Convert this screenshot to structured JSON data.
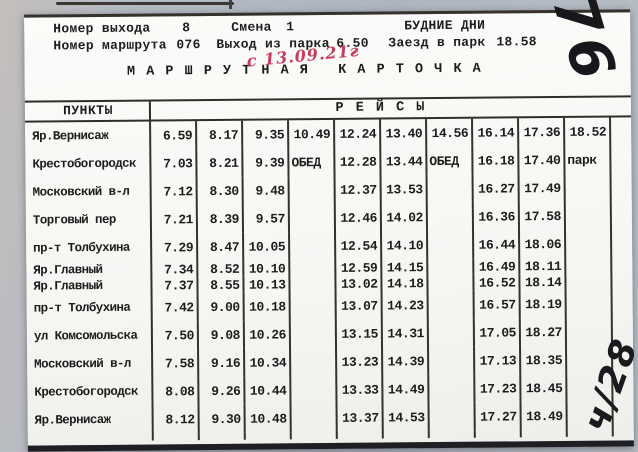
{
  "header": {
    "exit_label": "Номер выхода",
    "exit_value": "8",
    "shift_label": "Смена",
    "shift_value": "1",
    "days": "БУДНИЕ ДНИ",
    "route_label": "Номер маршрута",
    "route_value": "076",
    "depart_label": "Выход из парка",
    "depart_value": "6.50",
    "return_label": "Заезд в парк",
    "return_value": "18.58",
    "title": "М А Р Ш Р У Т Н А Я   К А Р Т О Ч К А"
  },
  "handwriting": {
    "date_note": "с 13.09.21г",
    "side_mark": "76",
    "corner_mark": "ч/28"
  },
  "table": {
    "points_header": "ПУНКТЫ",
    "trips_header": "Р Е Й С Ы",
    "rows": [
      {
        "point": "Яр.Вернисаж",
        "times": [
          "6.59",
          "8.17",
          "9.35",
          "10.49",
          "12.24",
          "13.40",
          "14.56",
          "16.14",
          "17.36",
          "18.52"
        ]
      },
      {
        "point": "Крестобогородск",
        "times": [
          "7.03",
          "8.21",
          "9.39",
          "ОБЕД",
          "12.28",
          "13.44",
          "ОБЕД",
          "16.18",
          "17.40",
          "парк"
        ]
      },
      {
        "point": "Московский в-л",
        "times": [
          "7.12",
          "8.30",
          "9.48",
          "",
          "12.37",
          "13.53",
          "",
          "16.27",
          "17.49",
          ""
        ]
      },
      {
        "point": "Торговый пер",
        "times": [
          "7.21",
          "8.39",
          "9.57",
          "",
          "12.46",
          "14.02",
          "",
          "16.36",
          "17.58",
          ""
        ]
      },
      {
        "point": "пр-т Толбухина",
        "times": [
          "7.29",
          "8.47",
          "10.05",
          "",
          "12.54",
          "14.10",
          "",
          "16.44",
          "18.06",
          ""
        ]
      },
      {
        "point": "Яр.Главный",
        "compact": true,
        "times": [
          "7.34",
          "8.52",
          "10.10",
          "",
          "12.59",
          "14.15",
          "",
          "16.49",
          "18.11",
          ""
        ]
      },
      {
        "point": "Яр.Главный",
        "compact": true,
        "times": [
          "7.37",
          "8.55",
          "10.13",
          "",
          "13.02",
          "14.18",
          "",
          "16.52",
          "18.14",
          ""
        ]
      },
      {
        "point": "пр-т Толбухина",
        "times": [
          "7.42",
          "9.00",
          "10.18",
          "",
          "13.07",
          "14.23",
          "",
          "16.57",
          "18.19",
          ""
        ]
      },
      {
        "point": "ул Комсомольска",
        "times": [
          "7.50",
          "9.08",
          "10.26",
          "",
          "13.15",
          "14.31",
          "",
          "17.05",
          "18.27",
          ""
        ]
      },
      {
        "point": "Московский в-л",
        "times": [
          "7.58",
          "9.16",
          "10.34",
          "",
          "13.23",
          "14.39",
          "",
          "17.13",
          "18.35",
          ""
        ]
      },
      {
        "point": "Крестобогородск",
        "times": [
          "8.08",
          "9.26",
          "10.44",
          "",
          "13.33",
          "14.49",
          "",
          "17.23",
          "18.45",
          ""
        ]
      },
      {
        "point": "Яр.Вернисаж",
        "times": [
          "8.12",
          "9.30",
          "10.48",
          "",
          "13.37",
          "14.53",
          "",
          "17.27",
          "18.49",
          ""
        ]
      }
    ]
  }
}
